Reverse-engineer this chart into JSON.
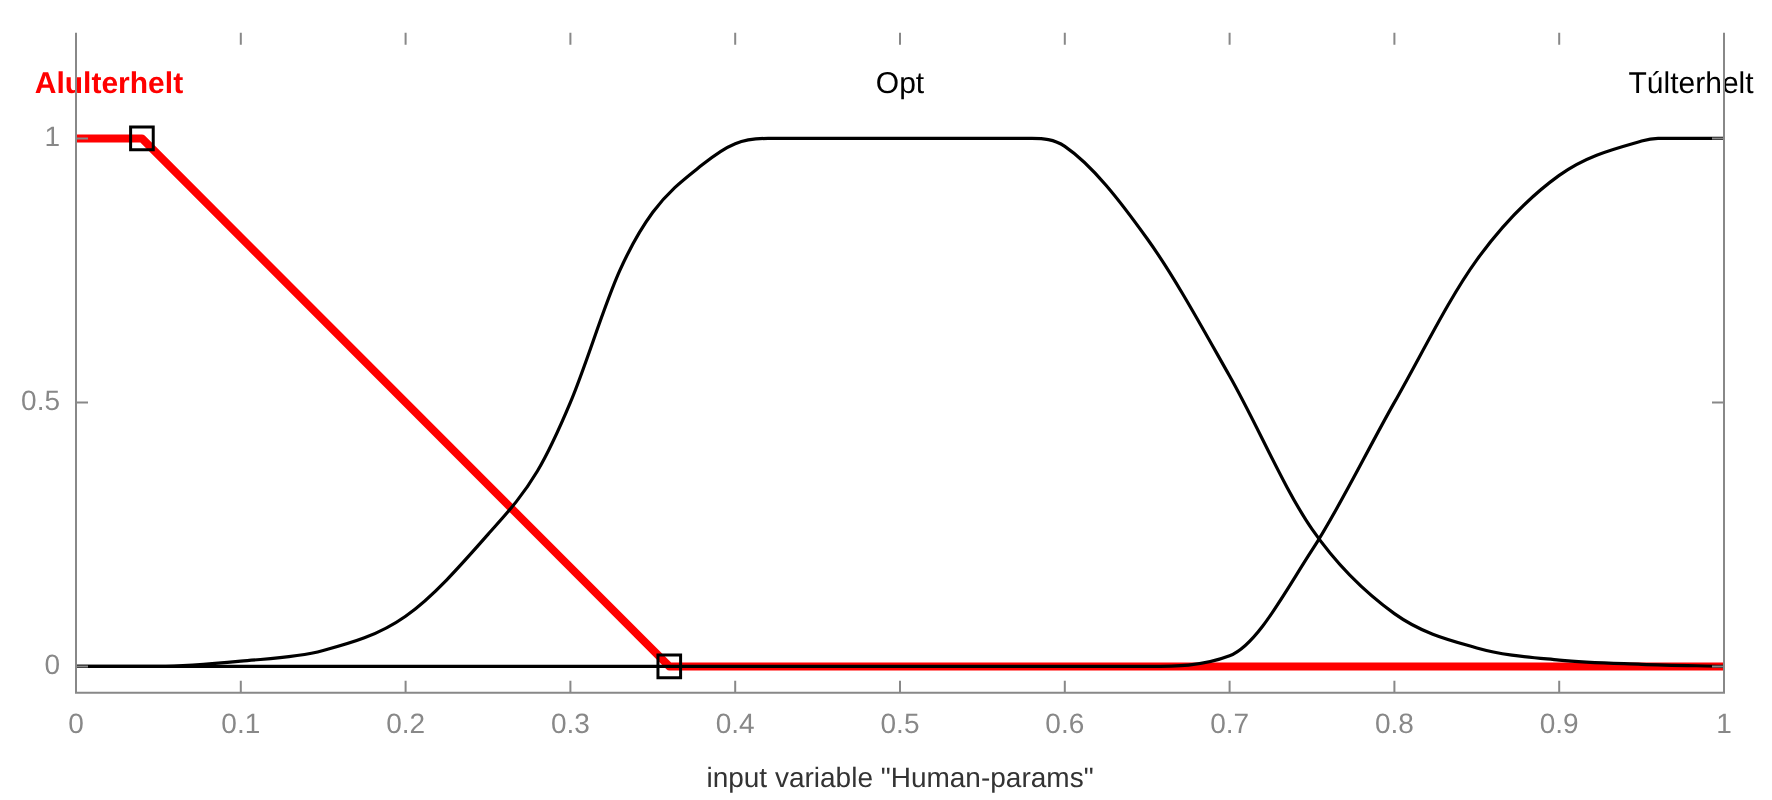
{
  "chart_data": {
    "type": "line",
    "xlabel": "input variable \"Human-params\"",
    "xlim": [
      0,
      1
    ],
    "xticks": [
      0,
      0.1,
      0.2,
      0.3,
      0.4,
      0.5,
      0.6,
      0.7,
      0.8,
      0.9,
      1
    ],
    "ylim": [
      -0.05,
      1.2
    ],
    "yticks": [
      0,
      0.5,
      1
    ],
    "grid": false,
    "legend": false,
    "marker": "none",
    "line_style": "solid",
    "series": [
      {
        "name": "Opt",
        "color": "#000000",
        "x": [
          0,
          0.05,
          0.1,
          0.15,
          0.2,
          0.25,
          0.28,
          0.3,
          0.33,
          0.35,
          0.38,
          0.4,
          0.42,
          0.58,
          0.6,
          0.65,
          0.7,
          0.75,
          0.8,
          0.85,
          0.9,
          0.95,
          1
        ],
        "values": [
          0,
          0,
          0.01,
          0.03,
          0.095,
          0.25,
          0.37,
          0.5,
          0.75,
          0.86,
          0.95,
          0.99,
          1,
          1,
          0.985,
          0.81,
          0.55,
          0.26,
          0.1,
          0.035,
          0.012,
          0.004,
          0
        ]
      },
      {
        "name": "Túlterhelt",
        "color": "#000000",
        "x": [
          0,
          0.65,
          0.7,
          0.75,
          0.8,
          0.85,
          0.9,
          0.95,
          0.96,
          1
        ],
        "values": [
          0,
          0,
          0.02,
          0.22,
          0.5,
          0.77,
          0.93,
          0.995,
          1,
          1
        ]
      },
      {
        "name": "Alulterhelt",
        "color": "#ff0000",
        "x": [
          0,
          0.04,
          0.36,
          1
        ],
        "values": [
          1,
          1,
          0,
          0
        ]
      },
      {
        "type": "scatter",
        "color": "#000000",
        "marker": "square",
        "x": [
          0.04,
          0.36
        ],
        "values": [
          1,
          0
        ]
      }
    ]
  }
}
